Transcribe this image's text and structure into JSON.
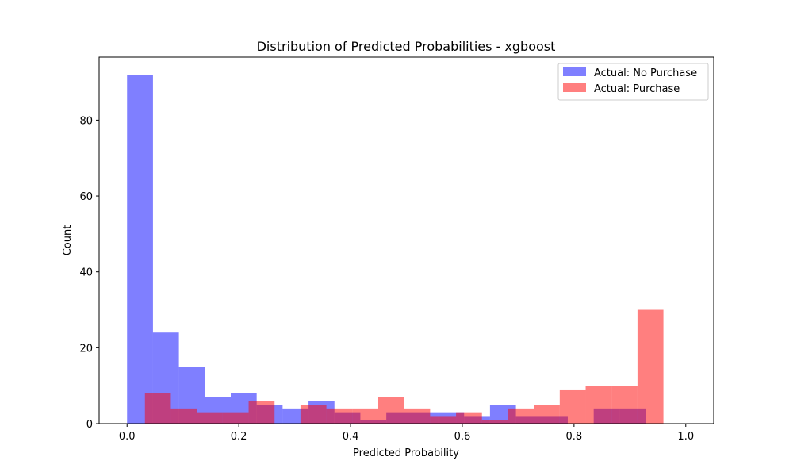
{
  "chart_data": {
    "type": "bar",
    "title": "Distribution of Predicted Probabilities - xgboost",
    "xlabel": "Predicted Probability",
    "ylabel": "Count",
    "xlim": [
      -0.05,
      1.05
    ],
    "ylim": [
      0,
      96.6
    ],
    "xticks": [
      0.0,
      0.2,
      0.4,
      0.6,
      0.8,
      1.0
    ],
    "xtick_labels": [
      "0.0",
      "0.2",
      "0.4",
      "0.6",
      "0.8",
      "1.0"
    ],
    "yticks": [
      0,
      20,
      40,
      60,
      80
    ],
    "ytick_labels": [
      "0",
      "20",
      "40",
      "60",
      "80"
    ],
    "grid": false,
    "legend_position": "top-right",
    "series": [
      {
        "name": "Actual: No Purchase",
        "color": "#0000ff",
        "opacity": 0.5,
        "bin_start": 0.0,
        "bin_width": 0.0464,
        "values": [
          92,
          24,
          15,
          7,
          8,
          5,
          4,
          6,
          3,
          1,
          3,
          3,
          3,
          2,
          5,
          2,
          2,
          0,
          4,
          4,
          0
        ]
      },
      {
        "name": "Actual: Purchase",
        "color": "#ff0000",
        "opacity": 0.5,
        "bin_start": 0.032,
        "bin_width": 0.0464,
        "values": [
          8,
          4,
          3,
          3,
          6,
          0,
          5,
          4,
          4,
          7,
          4,
          2,
          3,
          1,
          4,
          5,
          9,
          10,
          10,
          30
        ]
      }
    ]
  }
}
